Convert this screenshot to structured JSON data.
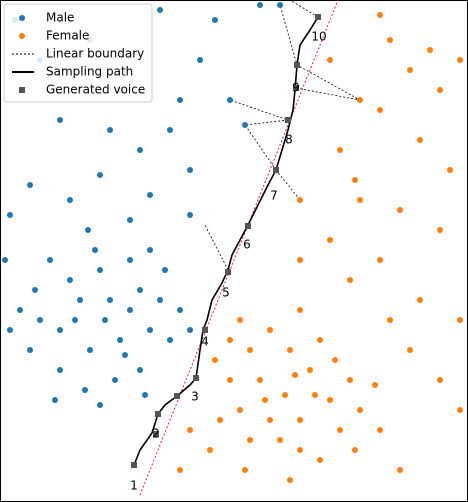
{
  "chart_data": {
    "type": "scatter",
    "xlim": [
      0,
      468
    ],
    "ylim": [
      502,
      0
    ],
    "series": [
      {
        "name": "Male",
        "color": "#1f77b4",
        "x": [
          105,
          80,
          130,
          60,
          90,
          120,
          140,
          70,
          100,
          150,
          40,
          20,
          115,
          85,
          60,
          160,
          170,
          130,
          95,
          50,
          30,
          140,
          110,
          75,
          125,
          165,
          180,
          10,
          55,
          100,
          145,
          190,
          35,
          88,
          150,
          15,
          40,
          90,
          160,
          215,
          260,
          200,
          120,
          180,
          60,
          140,
          30,
          100,
          190,
          170,
          230,
          245,
          190,
          130,
          10,
          70,
          150,
          280,
          110,
          5
        ],
        "y": [
          320,
          300,
          310,
          330,
          350,
          340,
          290,
          280,
          270,
          330,
          320,
          310,
          380,
          390,
          370,
          300,
          340,
          260,
          250,
          260,
          350,
          370,
          300,
          320,
          355,
          270,
          310,
          330,
          400,
          405,
          395,
          330,
          290,
          230,
          250,
          20,
          60,
          40,
          10,
          20,
          5,
          60,
          90,
          100,
          120,
          150,
          185,
          175,
          170,
          130,
          100,
          125,
          215,
          220,
          215,
          200,
          195,
          5,
          130,
          260
        ]
      },
      {
        "name": "Female",
        "color": "#ff7f0e",
        "x": [
          285,
          260,
          310,
          240,
          270,
          300,
          330,
          250,
          290,
          320,
          230,
          350,
          340,
          280,
          250,
          220,
          300,
          360,
          270,
          230,
          315,
          265,
          295,
          335,
          215,
          375,
          245,
          290,
          320,
          210,
          355,
          380,
          240,
          300,
          190,
          180,
          390,
          410,
          440,
          460,
          380,
          340,
          420,
          450,
          360,
          300,
          330,
          400,
          440,
          380,
          350,
          420,
          460,
          300,
          390,
          410,
          440,
          460,
          400,
          360,
          430,
          380,
          330,
          355
        ],
        "y": [
          395,
          380,
          370,
          410,
          420,
          420,
          400,
          350,
          350,
          340,
          380,
          380,
          430,
          440,
          440,
          420,
          450,
          410,
          330,
          340,
          395,
          400,
          375,
          360,
          360,
          385,
          470,
          480,
          460,
          450,
          450,
          430,
          320,
          310,
          430,
          470,
          40,
          70,
          90,
          60,
          110,
          150,
          140,
          170,
          200,
          200,
          240,
          210,
          230,
          260,
          280,
          300,
          320,
          260,
          320,
          350,
          380,
          410,
          470,
          100,
          50,
          15,
          60,
          180
        ]
      }
    ],
    "boundary": {
      "name": "Linear boundary",
      "color": "#d62728",
      "x": [
        140,
        338
      ],
      "y": [
        495,
        0
      ]
    },
    "sampling_path": {
      "name": "Sampling path",
      "color": "#000000",
      "x": [
        134,
        140,
        152,
        158,
        165,
        177,
        190,
        196,
        200,
        203,
        207,
        212,
        222,
        228,
        232,
        240,
        248,
        258,
        268,
        276,
        282,
        288,
        293,
        295,
        297,
        300,
        310,
        318
      ],
      "y": [
        465,
        450,
        433,
        414,
        405,
        396,
        385,
        378,
        350,
        330,
        320,
        300,
        283,
        270,
        255,
        240,
        225,
        205,
        185,
        170,
        150,
        130,
        110,
        90,
        65,
        45,
        30,
        17
      ]
    },
    "generated": {
      "name": "Generated voice",
      "color": "#555555",
      "x": [
        134,
        156,
        158,
        177,
        196,
        205,
        228,
        248,
        276,
        288,
        296,
        297,
        318
      ],
      "y": [
        465,
        434,
        414,
        396,
        378,
        330,
        272,
        226,
        170,
        120,
        88,
        65,
        17
      ]
    },
    "annotations": {
      "labels": [
        "1",
        "2",
        "3",
        "4",
        "5",
        "6",
        "7",
        "8",
        "9",
        "10"
      ],
      "x": [
        134,
        156,
        195,
        205,
        226,
        247,
        274,
        289,
        296,
        319
      ],
      "y": [
        486,
        434,
        397,
        342,
        293,
        245,
        196,
        140,
        88,
        37
      ]
    }
  }
}
